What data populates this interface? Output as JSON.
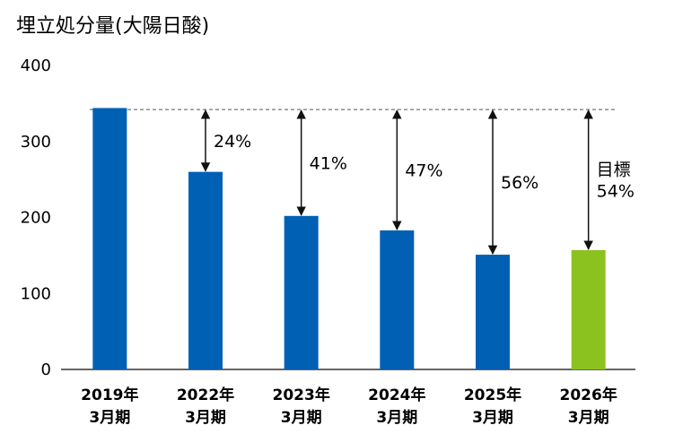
{
  "chart_data": {
    "type": "bar",
    "title": "埋立処分量(大陽日酸)",
    "xlabel": "",
    "ylabel": "",
    "ylim": [
      0,
      400
    ],
    "yticks": [
      "0",
      "100",
      "200",
      "300",
      "400"
    ],
    "categories": [
      {
        "line1": "2019年",
        "line2": "3月期"
      },
      {
        "line1": "2022年",
        "line2": "3月期"
      },
      {
        "line1": "2023年",
        "line2": "3月期"
      },
      {
        "line1": "2024年",
        "line2": "3月期"
      },
      {
        "line1": "2025年",
        "line2": "3月期"
      },
      {
        "line1": "2026年",
        "line2": "3月期"
      }
    ],
    "values": [
      344,
      260,
      202,
      183,
      151,
      157
    ],
    "bar_colors": [
      "#0060b4",
      "#0060b4",
      "#0060b4",
      "#0060b4",
      "#0060b4",
      "#8cc21f"
    ],
    "baseline_value": 342,
    "annotations": [
      {
        "index": 1,
        "lines": [
          "24%"
        ]
      },
      {
        "index": 2,
        "lines": [
          "41%"
        ]
      },
      {
        "index": 3,
        "lines": [
          "47%"
        ]
      },
      {
        "index": 4,
        "lines": [
          "56%"
        ]
      },
      {
        "index": 5,
        "lines": [
          "目標",
          "54%"
        ]
      }
    ]
  }
}
